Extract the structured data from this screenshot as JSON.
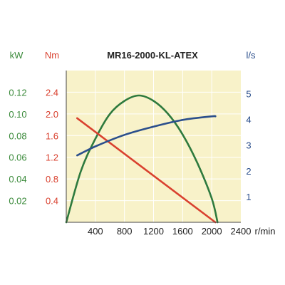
{
  "chart_data": {
    "type": "line",
    "title": "MR16-2000-KL-ATEX",
    "xlabel": "r/min",
    "xlim": [
      0,
      2400
    ],
    "x_ticks": [
      "400",
      "800",
      "1200",
      "1600",
      "2000",
      "2400"
    ],
    "plot_background": "#f8f2c9",
    "grid": true,
    "axes": {
      "power": {
        "unit": "kW",
        "color": "#3a8a3a",
        "ylim": [
          0,
          0.14
        ],
        "ticks": [
          "0.02",
          "0.04",
          "0.06",
          "0.08",
          "0.10",
          "0.12"
        ]
      },
      "torque": {
        "unit": "Nm",
        "color": "#d9412f",
        "ylim": [
          0,
          2.8
        ],
        "ticks": [
          "0.4",
          "0.8",
          "1.2",
          "1.6",
          "2.0",
          "2.4"
        ]
      },
      "flow": {
        "unit": "l/s",
        "color": "#2b4f8c",
        "ylim": [
          0,
          5.9
        ],
        "ticks": [
          "1",
          "2",
          "3",
          "4",
          "5"
        ]
      }
    },
    "series": [
      {
        "axis": "power",
        "color": "#2e7a3e",
        "points": [
          [
            0,
            0
          ],
          [
            200,
            0.047
          ],
          [
            400,
            0.077
          ],
          [
            600,
            0.1
          ],
          [
            800,
            0.112
          ],
          [
            1000,
            0.117
          ],
          [
            1200,
            0.112
          ],
          [
            1400,
            0.1
          ],
          [
            1600,
            0.081
          ],
          [
            1800,
            0.055
          ],
          [
            2000,
            0.022
          ],
          [
            2080,
            0
          ]
        ]
      },
      {
        "axis": "torque",
        "color": "#d9412f",
        "points": [
          [
            150,
            1.92
          ],
          [
            2050,
            0
          ]
        ]
      },
      {
        "axis": "flow",
        "color": "#2b4f8c",
        "points": [
          [
            150,
            2.6
          ],
          [
            400,
            2.95
          ],
          [
            800,
            3.4
          ],
          [
            1200,
            3.72
          ],
          [
            1600,
            3.98
          ],
          [
            2000,
            4.12
          ],
          [
            2050,
            4.12
          ]
        ]
      }
    ]
  }
}
